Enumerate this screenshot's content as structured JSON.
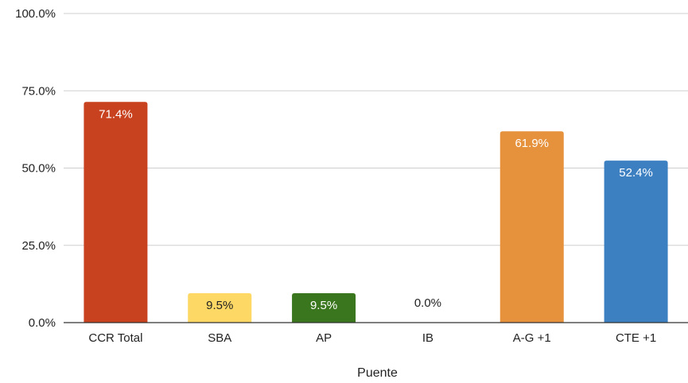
{
  "chart_data": {
    "type": "bar",
    "title": "",
    "xlabel": "Puente",
    "ylabel": "",
    "ylim": [
      0,
      100
    ],
    "yticks": [
      "0.0%",
      "25.0%",
      "50.0%",
      "75.0%",
      "100.0%"
    ],
    "ytick_values": [
      0,
      25,
      50,
      75,
      100
    ],
    "grid": true,
    "legend": "none",
    "categories": [
      "CCR Total",
      "SBA",
      "AP",
      "IB",
      "A-G +1",
      "CTE +1"
    ],
    "values": [
      71.4,
      9.5,
      9.5,
      0.0,
      61.9,
      52.4
    ],
    "data_labels": [
      "71.4%",
      "9.5%",
      "9.5%",
      "0.0%",
      "61.9%",
      "52.4%"
    ],
    "colors": [
      "#c8421f",
      "#fdd865",
      "#3a761d",
      "#cccccc",
      "#e6913b",
      "#3d80c2"
    ],
    "label_colors": [
      "#ffffff",
      "#222222",
      "#ffffff",
      "#222222",
      "#ffffff",
      "#ffffff"
    ]
  }
}
